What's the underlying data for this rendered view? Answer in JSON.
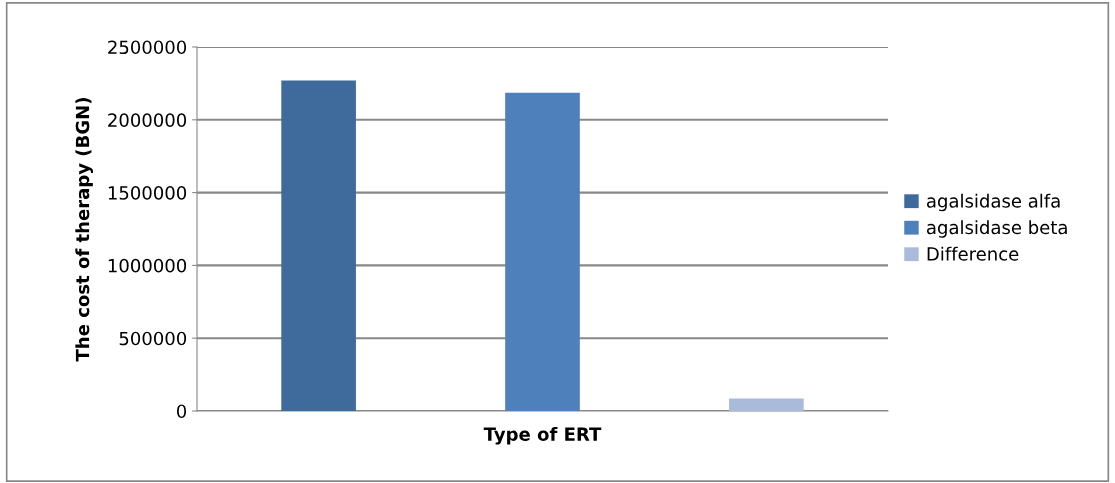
{
  "chart_data": {
    "type": "bar",
    "xlabel": "Type of ERT",
    "ylabel": "The cost of therapy (BGN)",
    "categories": [
      null
    ],
    "series": [
      {
        "name": "agalsidase alfa",
        "color": "#3f6b9c",
        "values": [
          2270000
        ]
      },
      {
        "name": "agalsidase beta",
        "color": "#4e80bb",
        "values": [
          2185000
        ]
      },
      {
        "name": "Difference",
        "color": "#a9badb",
        "values": [
          85000
        ]
      }
    ],
    "ylim": [
      0,
      2500000
    ],
    "yticks": [
      0,
      500000,
      1000000,
      1500000,
      2000000,
      2500000
    ],
    "grid": "y",
    "legend": "right"
  }
}
